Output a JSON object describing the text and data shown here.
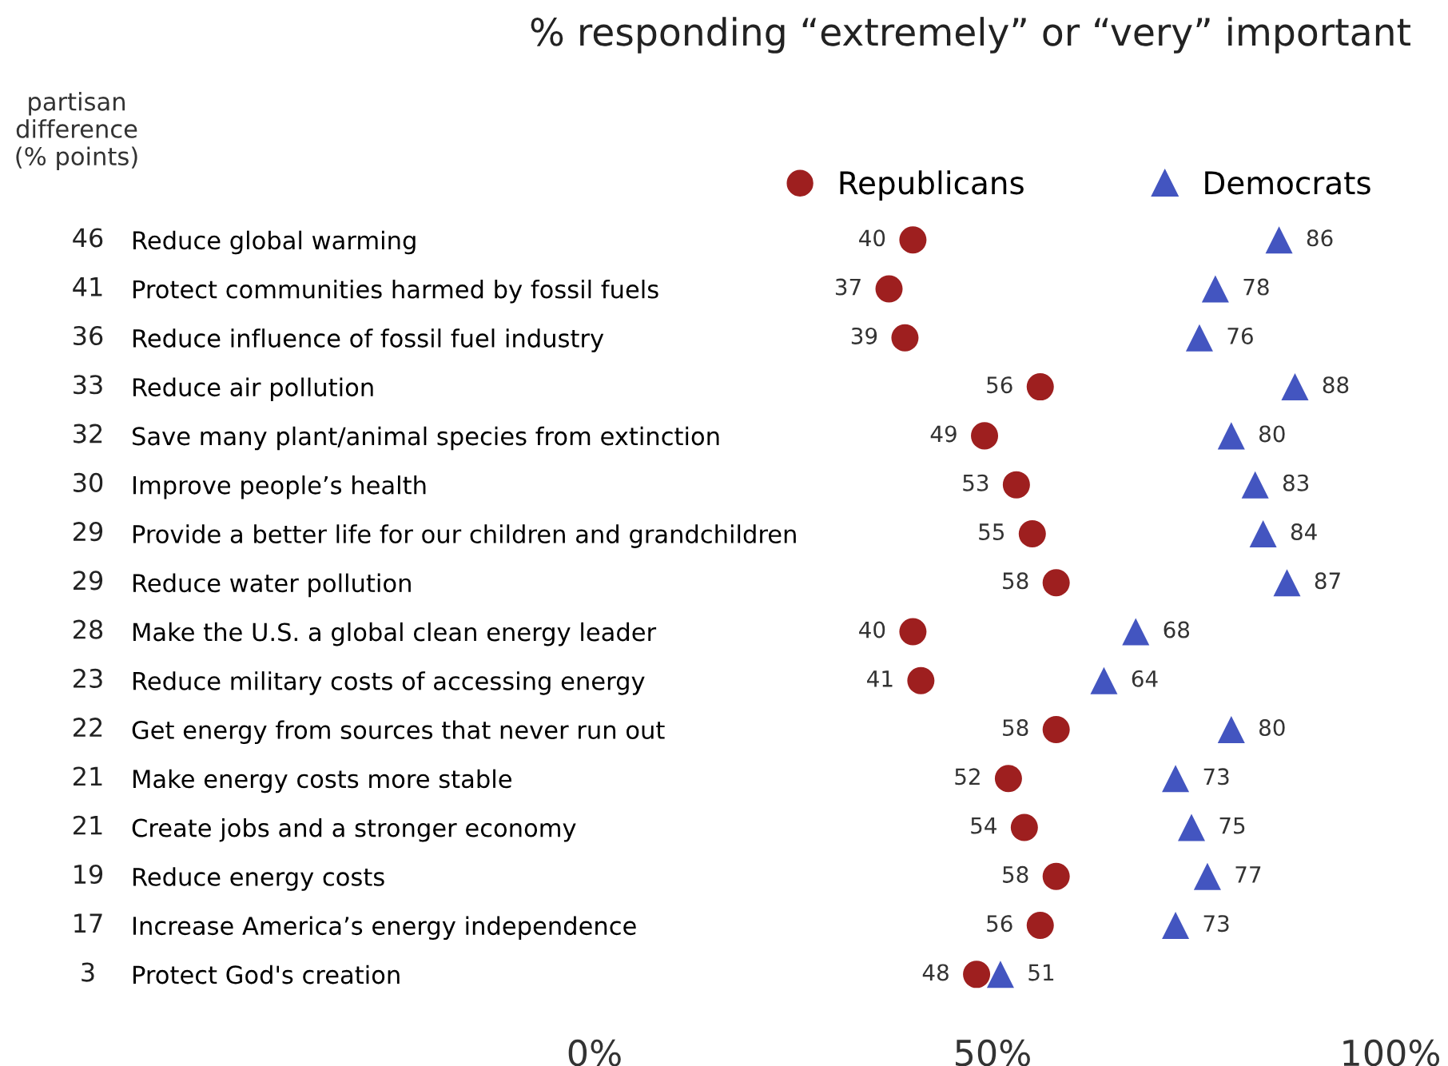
{
  "chart_data": {
    "type": "scatter",
    "orientation": "horizontal",
    "title": "% responding “extremely” or “very” important",
    "categories": [
      "Reduce global warming",
      "Protect communities harmed by fossil fuels",
      "Reduce influence of fossil fuel industry",
      "Reduce air pollution",
      "Save many plant/animal species from extinction",
      "Improve people’s health",
      "Provide a better life for our children and grandchildren",
      "Reduce water pollution",
      "Make the U.S. a global clean energy leader",
      "Reduce military costs of accessing energy",
      "Get energy from sources that never run out",
      "Make energy costs more stable",
      "Create jobs and a stronger economy",
      "Reduce energy costs",
      "Increase America’s energy independence",
      "Protect God's creation"
    ],
    "series": [
      {
        "name": "Republicans",
        "color": "#9e1f1f",
        "marker": "circle",
        "values": [
          40,
          37,
          39,
          56,
          49,
          53,
          55,
          58,
          40,
          41,
          58,
          52,
          54,
          58,
          56,
          48
        ]
      },
      {
        "name": "Democrats",
        "color": "#4355c0",
        "marker": "triangle",
        "values": [
          86,
          78,
          76,
          88,
          80,
          83,
          84,
          87,
          68,
          64,
          80,
          73,
          75,
          77,
          73,
          51
        ]
      }
    ],
    "xlim": [
      0,
      100
    ],
    "xticks": [
      {
        "value": 0,
        "label": "0%"
      },
      {
        "value": 50,
        "label": "50%"
      },
      {
        "value": 100,
        "label": "100%"
      }
    ],
    "data_labels": true,
    "legend": "top right",
    "grid": false,
    "annotations": [
      "partisan\ndifference\n(% points)",
      "46",
      "41",
      "36",
      "33",
      "32",
      "30",
      "29",
      "29",
      "28",
      "23",
      "22",
      "21",
      "21",
      "19",
      "17",
      "3"
    ]
  }
}
